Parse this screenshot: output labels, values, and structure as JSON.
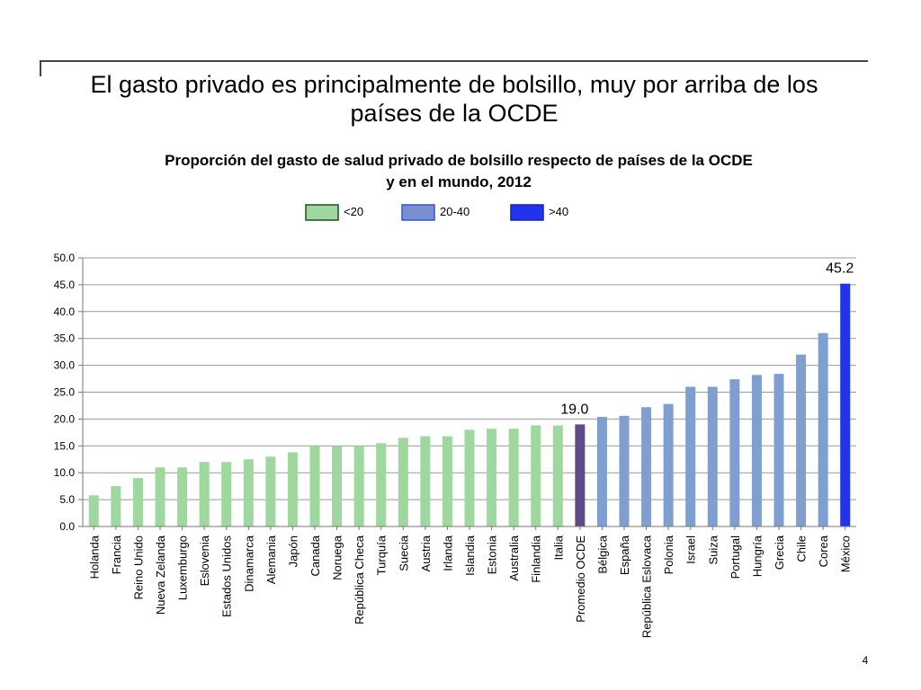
{
  "slide": {
    "title": "El gasto privado es principalmente de bolsillo, muy por arriba de los países de la OCDE",
    "page_number": "4"
  },
  "chart_data": {
    "type": "bar",
    "title": "Proporción del gasto de salud privado de bolsillo respecto de países de la OCDE y en el mundo, 2012",
    "xlabel": "",
    "ylabel": "",
    "ylim": [
      0,
      50
    ],
    "yticks": [
      "0.0",
      "5.0",
      "10.0",
      "15.0",
      "20.0",
      "25.0",
      "30.0",
      "35.0",
      "40.0",
      "45.0",
      "50.0"
    ],
    "grid": true,
    "legend_position": "top",
    "legend": [
      {
        "label": "<20",
        "color": "#9ed89e",
        "border": "#1e4d1e"
      },
      {
        "label": "20-40",
        "color": "#7b8fd0",
        "border": "#3355cc"
      },
      {
        "label": ">40",
        "color": "#2233ee",
        "border": "#1122aa"
      }
    ],
    "categories": [
      "Holanda",
      "Francia",
      "Reino Unido",
      "Nueva Zelanda",
      "Luxemburgo",
      "Eslovenia",
      "Estados Unidos",
      "Dinamarca",
      "Alemania",
      "Japón",
      "Canada",
      "Noruega",
      "República Checa",
      "Turquía",
      "Suecia",
      "Austria",
      "Irlanda",
      "Islandia",
      "Estonia",
      "Australia",
      "Finlandia",
      "Italia",
      "Promedio OCDE",
      "Bélgica",
      "España",
      "República Eslovaca",
      "Polonia",
      "Israel",
      "Suiza",
      "Portugal",
      "Hungría",
      "Grecia",
      "Chile",
      "Corea",
      "México"
    ],
    "values": [
      5.8,
      7.5,
      9.0,
      11.0,
      11.0,
      12.0,
      12.0,
      12.5,
      13.0,
      13.8,
      15.0,
      15.0,
      15.0,
      15.5,
      16.5,
      16.8,
      16.8,
      18.0,
      18.2,
      18.2,
      18.8,
      18.8,
      19.0,
      20.4,
      20.6,
      22.2,
      22.8,
      26.0,
      26.0,
      27.4,
      28.2,
      28.4,
      32.0,
      36.0,
      45.2
    ],
    "colors": [
      "#9ed89e",
      "#9ed89e",
      "#9ed89e",
      "#9ed89e",
      "#9ed89e",
      "#9ed89e",
      "#9ed89e",
      "#9ed89e",
      "#9ed89e",
      "#9ed89e",
      "#9ed89e",
      "#9ed89e",
      "#9ed89e",
      "#9ed89e",
      "#9ed89e",
      "#9ed89e",
      "#9ed89e",
      "#9ed89e",
      "#9ed89e",
      "#9ed89e",
      "#9ed89e",
      "#9ed89e",
      "#5e4b87",
      "#7e9fcf",
      "#7e9fcf",
      "#7e9fcf",
      "#7e9fcf",
      "#7e9fcf",
      "#7e9fcf",
      "#7e9fcf",
      "#7e9fcf",
      "#7e9fcf",
      "#7e9fcf",
      "#7e9fcf",
      "#2233ee"
    ],
    "annotations": [
      {
        "category": "Promedio OCDE",
        "text": "19.0"
      },
      {
        "category": "México",
        "text": "45.2"
      }
    ]
  }
}
